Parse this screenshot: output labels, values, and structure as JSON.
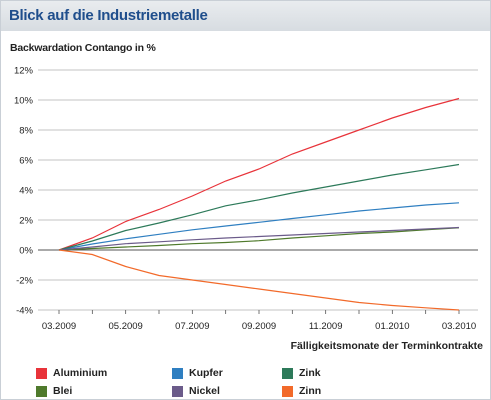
{
  "header": {
    "title": "Blick auf die Industriemetalle"
  },
  "colors": {
    "Aluminium": "#e8333a",
    "Kupfer": "#2f7fc1",
    "Zink": "#2d7a5a",
    "Blei": "#4f7a2c",
    "Nickel": "#6b5b8a",
    "Zinn": "#f26a2a"
  },
  "chart_data": {
    "type": "line",
    "ylabel": "Backwardation Contango in %",
    "xlabel": "Fälligkeitsmonate der Terminkontrakte",
    "x": [
      "03.2009",
      "04.2009",
      "05.2009",
      "06.2009",
      "07.2009",
      "08.2009",
      "09.2009",
      "10.2009",
      "11.2009",
      "12.2009",
      "01.2010",
      "02.2010",
      "03.2010"
    ],
    "xticks": [
      "03.2009",
      "05.2009",
      "07.2009",
      "09.2009",
      "11.2009",
      "01.2010",
      "03.2010"
    ],
    "yticks": [
      "-4%",
      "-2%",
      "0%",
      "2%",
      "4%",
      "6%",
      "8%",
      "10%",
      "12%"
    ],
    "ylim": [
      -4,
      12
    ],
    "grid": true,
    "legend_position": "bottom",
    "series": [
      {
        "name": "Aluminium",
        "values": [
          0,
          0.8,
          1.9,
          2.7,
          3.6,
          4.6,
          5.4,
          6.4,
          7.2,
          8.0,
          8.8,
          9.5,
          10.1
        ]
      },
      {
        "name": "Kupfer",
        "values": [
          0,
          0.4,
          0.75,
          1.05,
          1.35,
          1.6,
          1.85,
          2.1,
          2.35,
          2.6,
          2.8,
          3.0,
          3.15
        ]
      },
      {
        "name": "Zink",
        "values": [
          0,
          0.6,
          1.3,
          1.8,
          2.35,
          2.95,
          3.35,
          3.8,
          4.2,
          4.6,
          5.0,
          5.35,
          5.7
        ]
      },
      {
        "name": "Blei",
        "values": [
          0,
          0.1,
          0.2,
          0.3,
          0.42,
          0.5,
          0.62,
          0.8,
          0.95,
          1.1,
          1.2,
          1.35,
          1.48
        ]
      },
      {
        "name": "Nickel",
        "values": [
          0,
          0.2,
          0.42,
          0.55,
          0.68,
          0.8,
          0.9,
          1.0,
          1.1,
          1.2,
          1.3,
          1.4,
          1.5
        ]
      },
      {
        "name": "Zinn",
        "values": [
          0,
          -0.3,
          -1.1,
          -1.7,
          -2.0,
          -2.3,
          -2.6,
          -2.9,
          -3.2,
          -3.5,
          -3.7,
          -3.85,
          -4.0
        ]
      }
    ]
  },
  "legend": [
    "Aluminium",
    "Kupfer",
    "Zink",
    "Blei",
    "Nickel",
    "Zinn"
  ]
}
